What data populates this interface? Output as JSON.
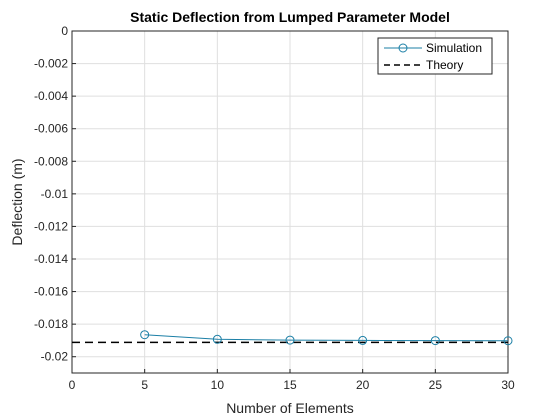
{
  "chart_data": {
    "type": "line",
    "title": "Static Deflection from Lumped Parameter Model",
    "xlabel": "Number of Elements",
    "ylabel": "Deflection (m)",
    "xlim": [
      0,
      30
    ],
    "ylim": [
      -0.021,
      0
    ],
    "xticks": [
      0,
      5,
      10,
      15,
      20,
      25,
      30
    ],
    "yticks": [
      0,
      -0.002,
      -0.004,
      -0.006,
      -0.008,
      -0.01,
      -0.012,
      -0.014,
      -0.016,
      -0.018,
      -0.02
    ],
    "xtick_labels": [
      "0",
      "5",
      "10",
      "15",
      "20",
      "25",
      "30"
    ],
    "ytick_labels": [
      "0",
      "-0.002",
      "-0.004",
      "-0.006",
      "-0.008",
      "-0.01",
      "-0.012",
      "-0.014",
      "-0.016",
      "-0.018",
      "-0.02"
    ],
    "grid": true,
    "legend_position": "top-right",
    "series": [
      {
        "name": "Simulation",
        "style": "solid line with circle markers",
        "color": "#1b7fa6",
        "x": [
          5,
          10,
          15,
          20,
          25,
          30
        ],
        "y": [
          -0.01865,
          -0.01893,
          -0.01898,
          -0.019,
          -0.01901,
          -0.01902
        ]
      },
      {
        "name": "Theory",
        "style": "dashed line",
        "color": "#000000",
        "x": [
          0,
          30
        ],
        "y": [
          -0.01912,
          -0.01912
        ]
      }
    ]
  }
}
